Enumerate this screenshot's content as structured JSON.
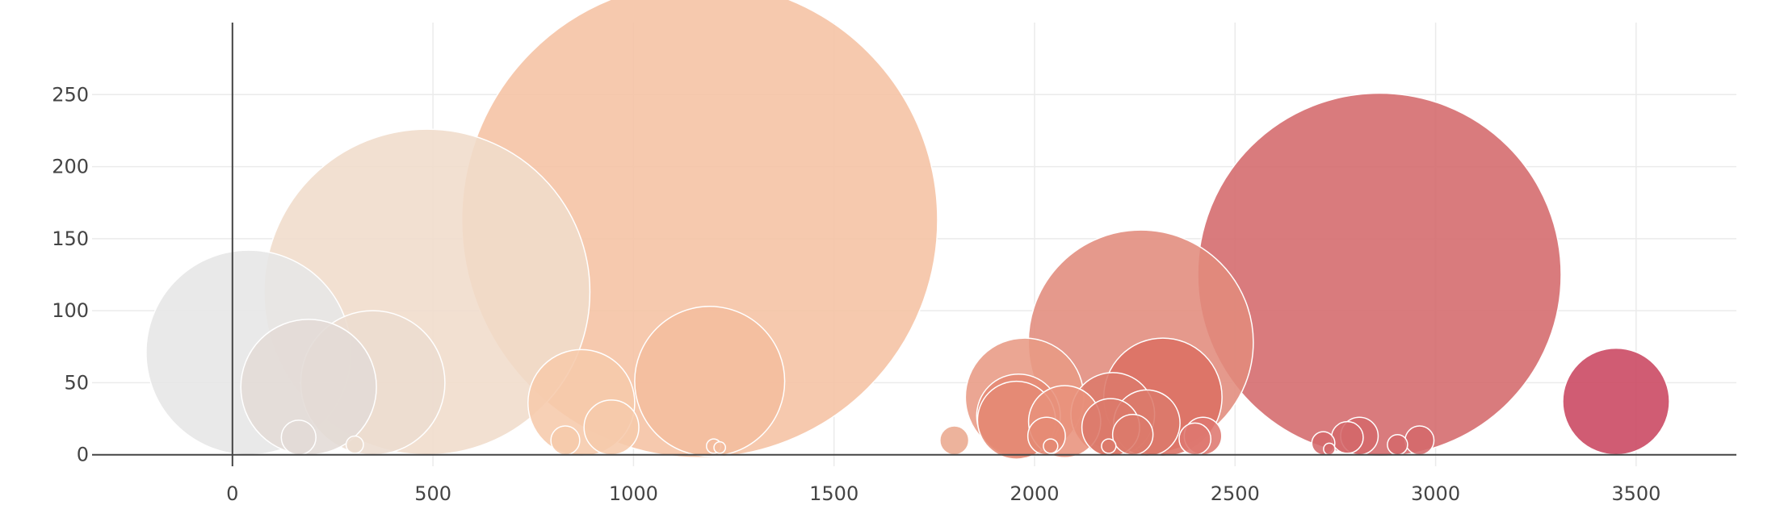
{
  "chart_data": {
    "type": "scatter",
    "title": "",
    "xlabel": "",
    "ylabel": "",
    "xlim": [
      -350,
      3750
    ],
    "ylim": [
      -8,
      300
    ],
    "xticks": [
      0,
      500,
      1000,
      1500,
      2000,
      2500,
      3000,
      3500
    ],
    "yticks": [
      0,
      50,
      100,
      150,
      200,
      250
    ],
    "grid": true,
    "legend": "none",
    "colorscale": [
      "#e6e6e6",
      "#eedccd",
      "#f5c2a3",
      "#e89a84",
      "#dc6f63",
      "#c94660"
    ],
    "points": [
      {
        "x": 40,
        "y": 71,
        "size": 142,
        "color": "#e6e6e6"
      },
      {
        "x": 190,
        "y": 47,
        "size": 94,
        "color": "#e3dbd6"
      },
      {
        "x": 350,
        "y": 50,
        "size": 100,
        "color": "#ecdccf"
      },
      {
        "x": 485,
        "y": 113,
        "size": 226,
        "color": "#f0dccb"
      },
      {
        "x": 165,
        "y": 12,
        "size": 24,
        "color": "#e3dbd6"
      },
      {
        "x": 305,
        "y": 7,
        "size": 12,
        "color": "#ecdccf"
      },
      {
        "x": 870,
        "y": 36,
        "size": 74,
        "color": "#f6caab"
      },
      {
        "x": 945,
        "y": 19,
        "size": 38,
        "color": "#f6caab"
      },
      {
        "x": 830,
        "y": 10,
        "size": 20,
        "color": "#f6caab"
      },
      {
        "x": 1165,
        "y": 163,
        "size": 330,
        "color": "#f5c2a3"
      },
      {
        "x": 1190,
        "y": 51,
        "size": 104,
        "color": "#f4bd9e"
      },
      {
        "x": 1200,
        "y": 6,
        "size": 10,
        "color": "#f4bd9e"
      },
      {
        "x": 1215,
        "y": 5,
        "size": 8,
        "color": "#f4bd9e"
      },
      {
        "x": 1800,
        "y": 10,
        "size": 20,
        "color": "#eaa98e"
      },
      {
        "x": 1975,
        "y": 40,
        "size": 82,
        "color": "#e89a84"
      },
      {
        "x": 1960,
        "y": 27,
        "size": 58,
        "color": "#e58a74"
      },
      {
        "x": 1955,
        "y": 24,
        "size": 54,
        "color": "#e58a74"
      },
      {
        "x": 2075,
        "y": 23,
        "size": 50,
        "color": "#e8927c"
      },
      {
        "x": 2030,
        "y": 13,
        "size": 26,
        "color": "#e58a74"
      },
      {
        "x": 2040,
        "y": 6,
        "size": 10,
        "color": "#e58a74"
      },
      {
        "x": 2265,
        "y": 78,
        "size": 156,
        "color": "#e18b7c"
      },
      {
        "x": 2195,
        "y": 28,
        "size": 58,
        "color": "#dc7a6b"
      },
      {
        "x": 2190,
        "y": 19,
        "size": 40,
        "color": "#dc7a6b"
      },
      {
        "x": 2320,
        "y": 40,
        "size": 82,
        "color": "#dc6f63"
      },
      {
        "x": 2280,
        "y": 22,
        "size": 46,
        "color": "#dc7a6b"
      },
      {
        "x": 2245,
        "y": 14,
        "size": 28,
        "color": "#dc7a6b"
      },
      {
        "x": 2185,
        "y": 6,
        "size": 10,
        "color": "#dc7a6b"
      },
      {
        "x": 2420,
        "y": 13,
        "size": 26,
        "color": "#de7770"
      },
      {
        "x": 2400,
        "y": 11,
        "size": 22,
        "color": "#de7770"
      },
      {
        "x": 2860,
        "y": 125,
        "size": 252,
        "color": "#d4696b"
      },
      {
        "x": 2780,
        "y": 12,
        "size": 22,
        "color": "#d4696b"
      },
      {
        "x": 2810,
        "y": 13,
        "size": 26,
        "color": "#d4696b"
      },
      {
        "x": 2720,
        "y": 8,
        "size": 16,
        "color": "#d4696b"
      },
      {
        "x": 2905,
        "y": 7,
        "size": 14,
        "color": "#d4696b"
      },
      {
        "x": 2960,
        "y": 10,
        "size": 20,
        "color": "#d4696b"
      },
      {
        "x": 2735,
        "y": 4,
        "size": 8,
        "color": "#d4696b"
      },
      {
        "x": 3450,
        "y": 37,
        "size": 74,
        "color": "#c94660"
      }
    ]
  }
}
